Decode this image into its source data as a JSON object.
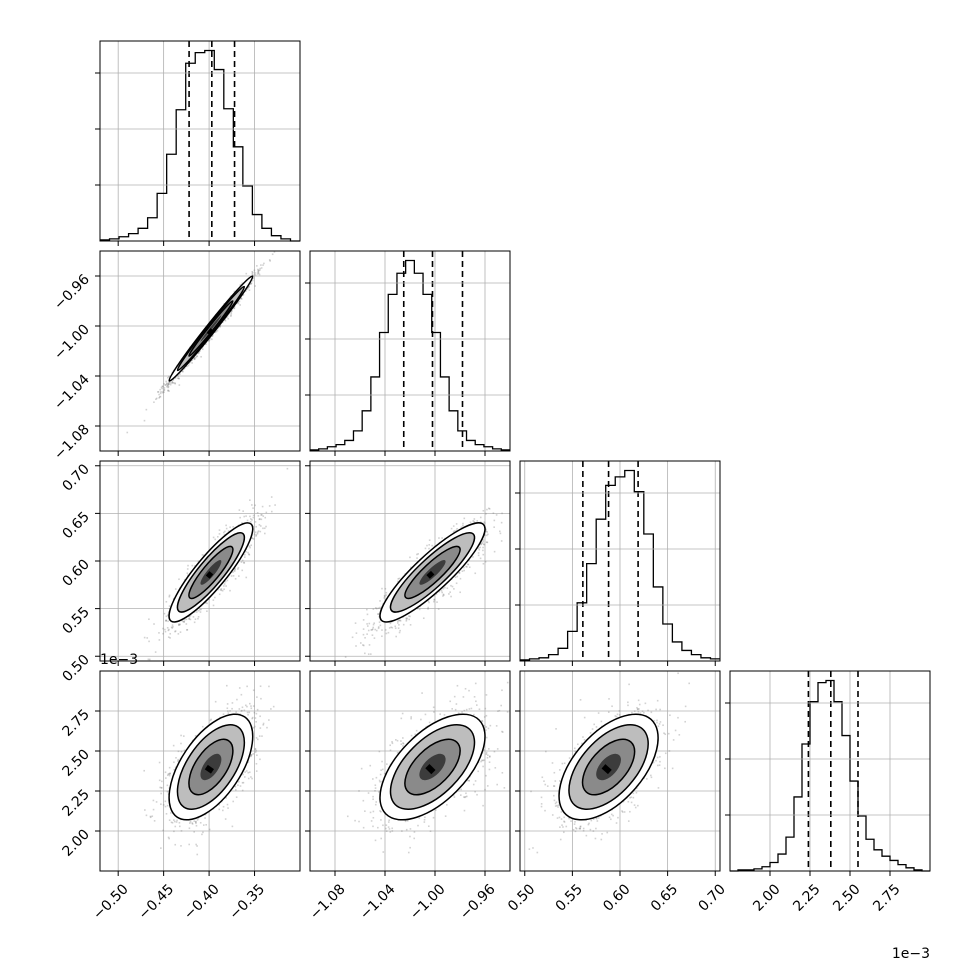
{
  "chart_data": {
    "type": "corner",
    "parameters": [
      {
        "index": 0,
        "range": [
          -0.52,
          -0.3
        ],
        "ticks": [
          -0.5,
          -0.45,
          -0.4,
          -0.35
        ],
        "tick_labels": [
          "−0.50",
          "−0.45",
          "−0.40",
          "−0.35"
        ],
        "quantiles": [
          -0.422,
          -0.397,
          -0.372
        ]
      },
      {
        "index": 1,
        "range": [
          -1.1,
          -0.94
        ],
        "ticks": [
          -1.08,
          -1.04,
          -1.0,
          -0.96
        ],
        "tick_labels": [
          "−1.08",
          "−1.04",
          "−1.00",
          "−0.96"
        ],
        "quantiles": [
          -1.025,
          -1.002,
          -0.978
        ]
      },
      {
        "index": 2,
        "range": [
          0.495,
          0.705
        ],
        "ticks": [
          0.5,
          0.55,
          0.6,
          0.65,
          0.7
        ],
        "tick_labels": [
          "0.50",
          "0.55",
          "0.60",
          "0.65",
          "0.70"
        ],
        "quantiles": [
          0.561,
          0.588,
          0.619
        ]
      },
      {
        "index": 3,
        "range": [
          1.75,
          3.0
        ],
        "ticks": [
          2.0,
          2.25,
          2.5,
          2.75
        ],
        "tick_labels": [
          "2.00",
          "2.25",
          "2.50",
          "2.75"
        ],
        "scale_note": "1e−3",
        "quantiles": [
          2.24,
          2.38,
          2.55
        ]
      }
    ],
    "histograms": [
      {
        "param": 0,
        "counts": [
          1,
          2,
          4,
          7,
          12,
          22,
          45,
          82,
          124,
          168,
          178,
          180,
          162,
          125,
          89,
          52,
          25,
          12,
          5,
          2,
          0
        ]
      },
      {
        "param": 1,
        "counts": [
          1,
          2,
          4,
          6,
          10,
          19,
          38,
          70,
          112,
          148,
          168,
          180,
          168,
          148,
          112,
          70,
          38,
          19,
          10,
          6,
          4,
          2,
          1
        ]
      },
      {
        "param": 2,
        "counts": [
          1,
          2,
          3,
          6,
          12,
          28,
          55,
          92,
          134,
          166,
          174,
          180,
          160,
          120,
          70,
          35,
          18,
          10,
          6,
          3,
          2
        ]
      },
      {
        "param": 3,
        "counts": [
          0,
          1,
          1,
          2,
          4,
          8,
          16,
          32,
          70,
          120,
          160,
          178,
          180,
          160,
          128,
          85,
          52,
          30,
          20,
          14,
          10,
          6,
          3,
          1,
          0
        ]
      }
    ],
    "pairs": [
      {
        "x": 0,
        "y": 1,
        "mean": [
          -0.398,
          -1.002
        ],
        "sd": [
          0.023,
          0.021
        ],
        "corr": 0.99
      },
      {
        "x": 0,
        "y": 2,
        "mean": [
          -0.398,
          0.588
        ],
        "sd": [
          0.023,
          0.026
        ],
        "corr": 0.88
      },
      {
        "x": 1,
        "y": 2,
        "mean": [
          -1.002,
          0.588
        ],
        "sd": [
          0.021,
          0.026
        ],
        "corr": 0.88
      },
      {
        "x": 0,
        "y": 3,
        "mean": [
          -0.398,
          2.4
        ],
        "sd": [
          0.023,
          0.165
        ],
        "corr": 0.58
      },
      {
        "x": 1,
        "y": 3,
        "mean": [
          -1.002,
          2.4
        ],
        "sd": [
          0.021,
          0.165
        ],
        "corr": 0.58
      },
      {
        "x": 2,
        "y": 3,
        "mean": [
          0.588,
          2.4
        ],
        "sd": [
          0.026,
          0.165
        ],
        "corr": 0.55
      }
    ],
    "colors": {
      "points": "#7f7f7f",
      "density": "#000000",
      "grid": "#b0b0b0",
      "contour": "#000000",
      "quantile_lines": "#000000"
    },
    "grid": true,
    "quantile_line_style": "dashed"
  }
}
